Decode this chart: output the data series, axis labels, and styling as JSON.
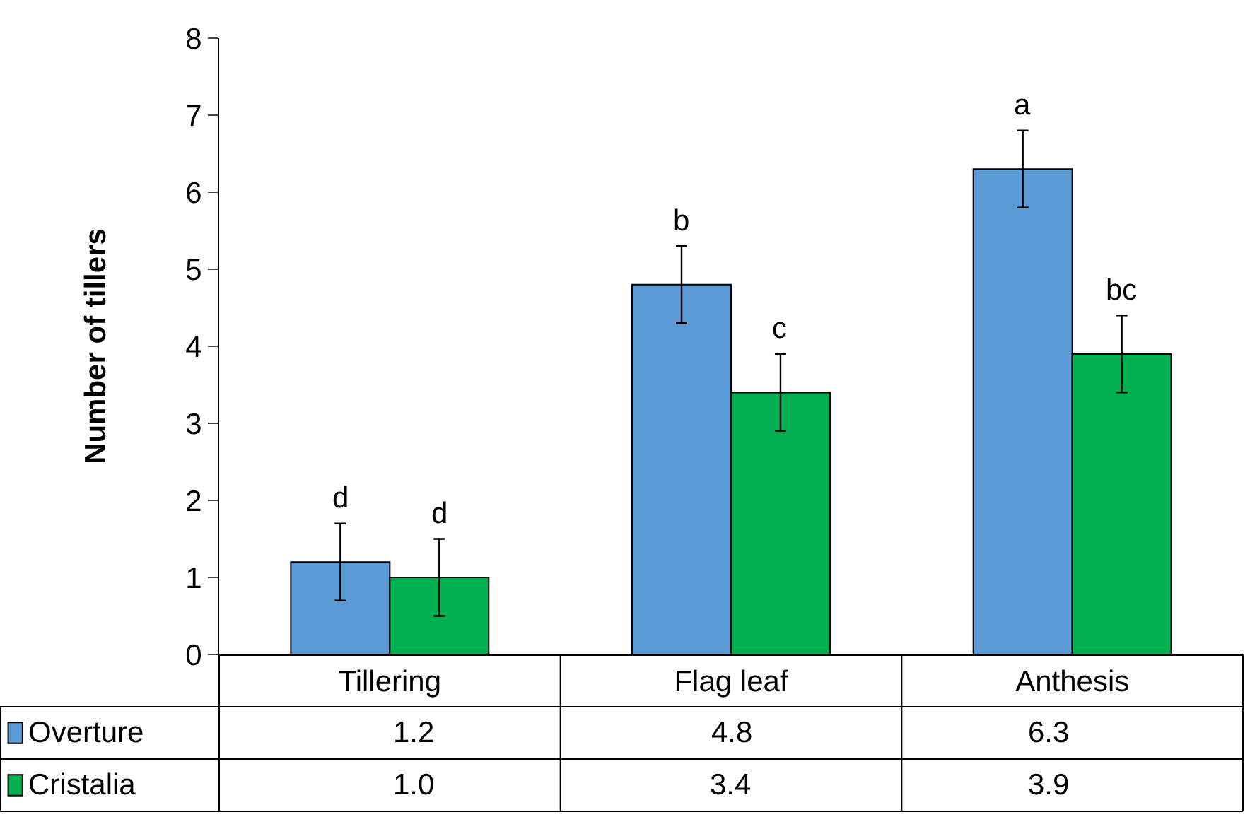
{
  "chart_data": {
    "type": "bar",
    "ylabel": "Number of tillers",
    "categories": [
      "Tillering",
      "Flag leaf",
      "Anthesis"
    ],
    "series": [
      {
        "name": "Overture",
        "color": "#5b9bd5",
        "values": [
          1.2,
          4.8,
          6.3
        ],
        "value_labels": [
          "1.2",
          "4.8",
          "6.3"
        ],
        "errors": [
          0.5,
          0.5,
          0.5
        ]
      },
      {
        "name": "Cristalia",
        "color": "#00b050",
        "values": [
          1.0,
          3.4,
          3.9
        ],
        "value_labels": [
          "1.0",
          "3.4",
          "3.9"
        ],
        "errors": [
          0.5,
          0.5,
          0.5
        ]
      }
    ],
    "ylim": [
      0,
      8
    ],
    "yticks": [
      0,
      1,
      2,
      3,
      4,
      5,
      6,
      7,
      8
    ],
    "grid": false,
    "legend": "bottom left",
    "annotations": [
      "d",
      "d",
      "b",
      "c",
      "a",
      "bc"
    ]
  }
}
